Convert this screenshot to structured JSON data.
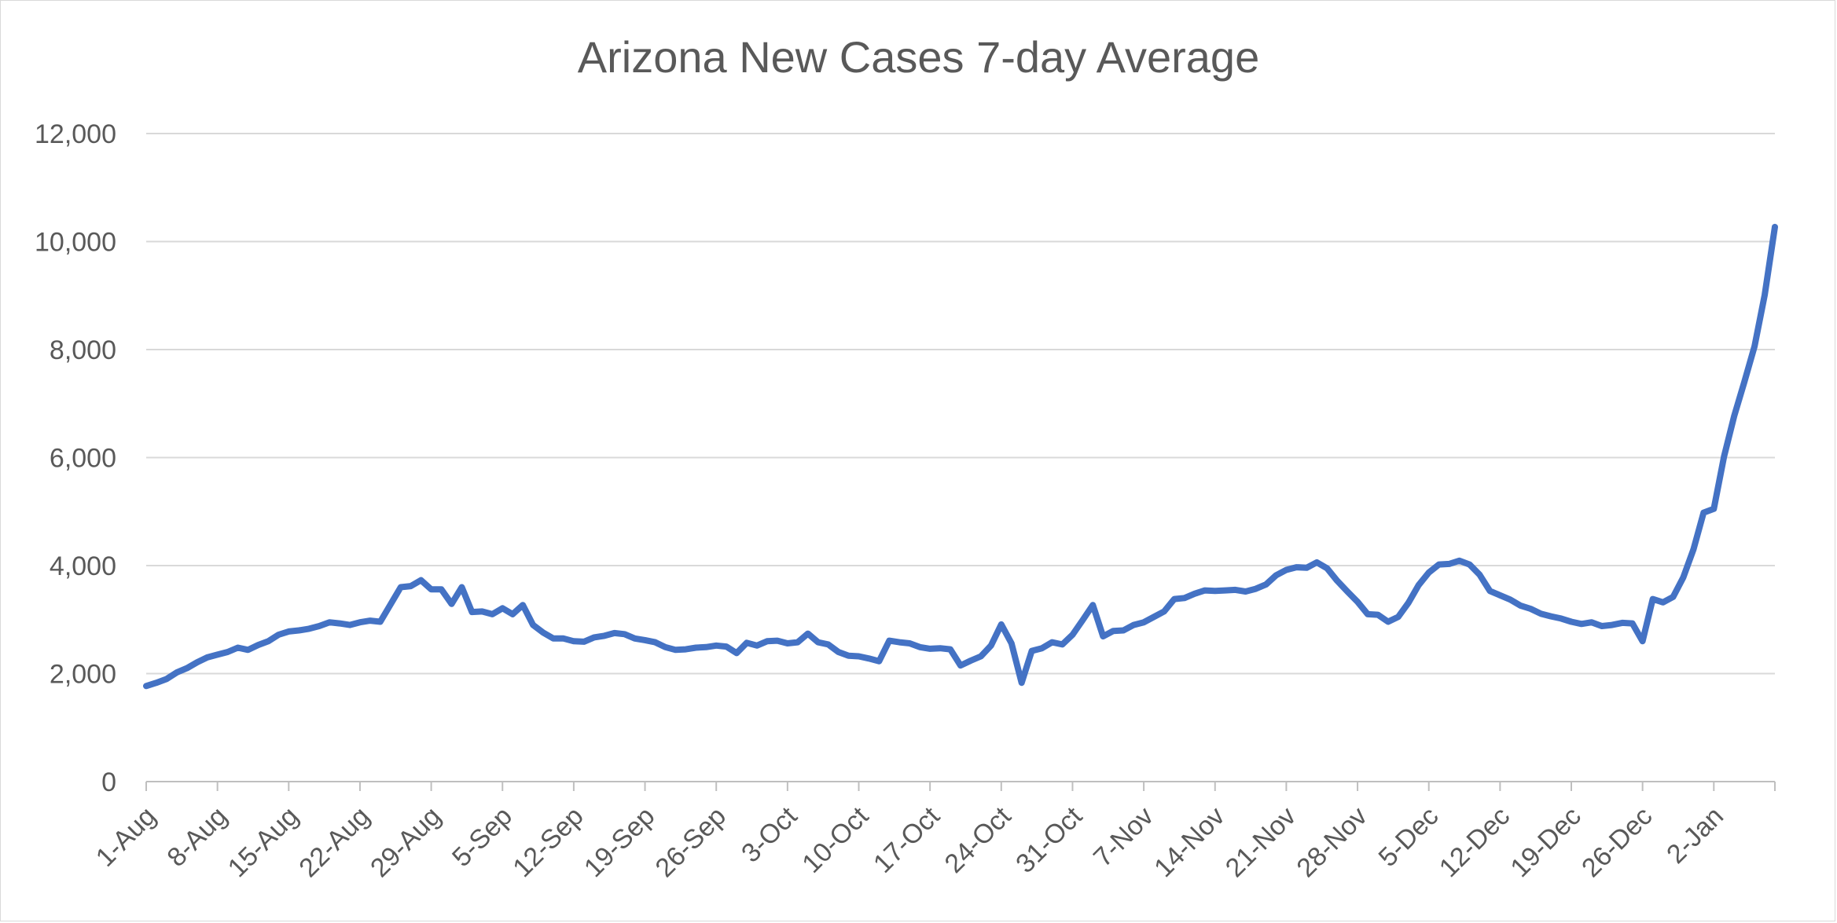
{
  "chart_data": {
    "type": "line",
    "title": "Arizona New Cases 7-day Average",
    "xlabel": "",
    "ylabel": "",
    "ylim": [
      0,
      12000
    ],
    "yticks": [
      0,
      2000,
      4000,
      6000,
      8000,
      10000,
      12000
    ],
    "ytick_labels": [
      "0",
      "2,000",
      "4,000",
      "6,000",
      "8,000",
      "10,000",
      "12,000"
    ],
    "xtick_labels": [
      "1-Aug",
      "8-Aug",
      "15-Aug",
      "22-Aug",
      "29-Aug",
      "5-Sep",
      "12-Sep",
      "19-Sep",
      "26-Sep",
      "3-Oct",
      "10-Oct",
      "17-Oct",
      "24-Oct",
      "31-Oct",
      "7-Nov",
      "14-Nov",
      "21-Nov",
      "28-Nov",
      "5-Dec",
      "12-Dec",
      "19-Dec",
      "26-Dec",
      "2-Jan"
    ],
    "grid": true,
    "legend": "none",
    "series": [
      {
        "color": "#4472c4",
        "start_date": "1-Aug",
        "values": [
          1770,
          1830,
          1900,
          2020,
          2100,
          2210,
          2300,
          2350,
          2400,
          2480,
          2440,
          2530,
          2600,
          2720,
          2780,
          2800,
          2830,
          2880,
          2950,
          2930,
          2900,
          2950,
          2980,
          2960,
          3280,
          3600,
          3620,
          3730,
          3560,
          3560,
          3290,
          3600,
          3140,
          3150,
          3100,
          3210,
          3100,
          3270,
          2900,
          2760,
          2650,
          2650,
          2600,
          2590,
          2670,
          2700,
          2750,
          2730,
          2650,
          2620,
          2580,
          2490,
          2440,
          2450,
          2480,
          2490,
          2520,
          2500,
          2380,
          2570,
          2520,
          2600,
          2610,
          2560,
          2580,
          2740,
          2580,
          2540,
          2400,
          2330,
          2320,
          2280,
          2230,
          2610,
          2580,
          2560,
          2490,
          2460,
          2470,
          2450,
          2150,
          2240,
          2320,
          2520,
          2910,
          2560,
          1830,
          2420,
          2470,
          2580,
          2540,
          2720,
          2990,
          3270,
          2690,
          2790,
          2800,
          2900,
          2950,
          3050,
          3150,
          3380,
          3400,
          3480,
          3540,
          3530,
          3540,
          3550,
          3520,
          3570,
          3650,
          3820,
          3920,
          3970,
          3960,
          4060,
          3950,
          3720,
          3520,
          3330,
          3100,
          3090,
          2960,
          3050,
          3310,
          3640,
          3870,
          4020,
          4030,
          4090,
          4020,
          3830,
          3530,
          3450,
          3370,
          3260,
          3200,
          3110,
          3060,
          3020,
          2960,
          2920,
          2950,
          2880,
          2900,
          2940,
          2930,
          2600,
          3380,
          3320,
          3420,
          3780,
          4300,
          4980,
          5050,
          6020,
          6770,
          7400,
          8060,
          9010,
          10270
        ]
      }
    ]
  }
}
